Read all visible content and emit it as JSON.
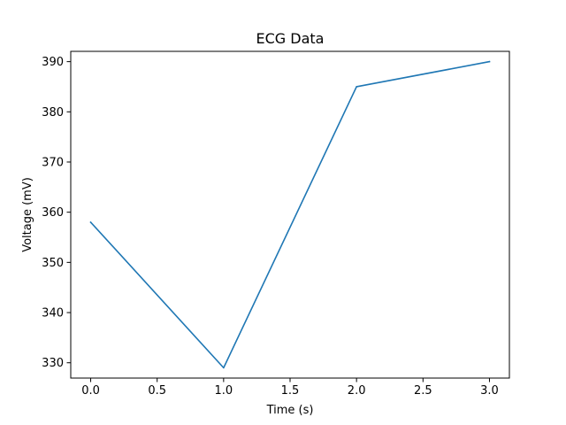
{
  "chart_data": {
    "type": "line",
    "title": "ECG Data",
    "xlabel": "Time (s)",
    "ylabel": "Voltage (mV)",
    "xlim": [
      -0.15,
      3.15
    ],
    "ylim": [
      326.95,
      392.05
    ],
    "xticks": [
      0.0,
      0.5,
      1.0,
      1.5,
      2.0,
      2.5,
      3.0
    ],
    "xtick_labels": [
      "0.0",
      "0.5",
      "1.0",
      "1.5",
      "2.0",
      "2.5",
      "3.0"
    ],
    "yticks": [
      330,
      340,
      350,
      360,
      370,
      380,
      390
    ],
    "ytick_labels": [
      "330",
      "340",
      "350",
      "360",
      "370",
      "380",
      "390"
    ],
    "grid": false,
    "series": [
      {
        "color": "#1f77b4",
        "x": [
          0,
          1,
          2,
          3
        ],
        "y": [
          358,
          329,
          385,
          390
        ]
      }
    ]
  }
}
